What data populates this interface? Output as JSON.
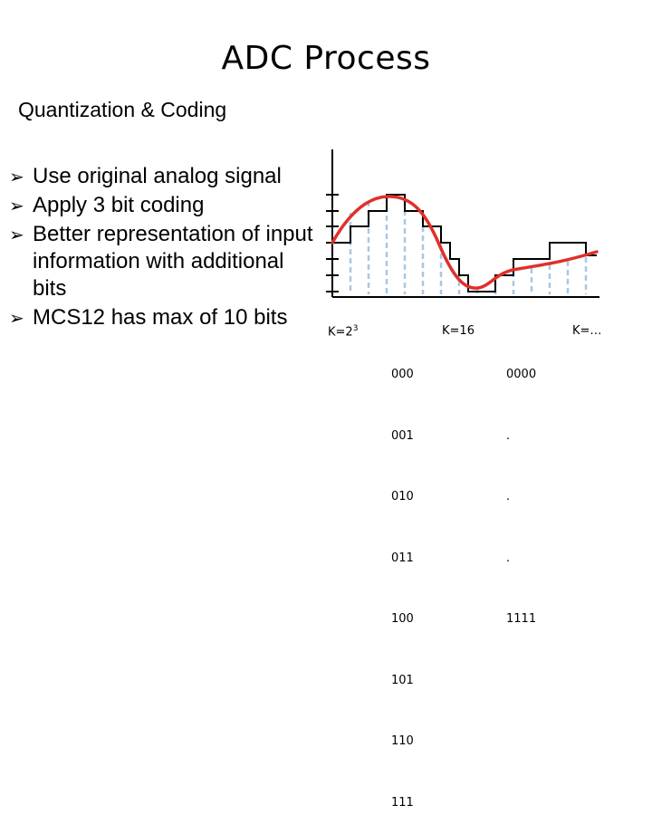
{
  "slide": {
    "title": "ADC Process",
    "subtitle": "Quantization & Coding",
    "bullets": [
      "Use original analog signal",
      "Apply 3 bit coding",
      "Better representation of input information with additional bits",
      "MCS12 has max of 10 bits"
    ]
  },
  "diagram": {
    "k_labels": {
      "k8_base": "K=2",
      "k8_exp": "3",
      "k16": "K=16",
      "kdots": "K=…"
    },
    "codes_3bit": [
      "000",
      "001",
      "010",
      "011",
      "100",
      "101",
      "110",
      "111"
    ],
    "codes_4bit": [
      "0000",
      ".",
      ".",
      ".",
      "1111"
    ],
    "colors": {
      "signal": "#e0302a",
      "sample_lines": "#a8c8e4",
      "step": "#000000"
    }
  }
}
